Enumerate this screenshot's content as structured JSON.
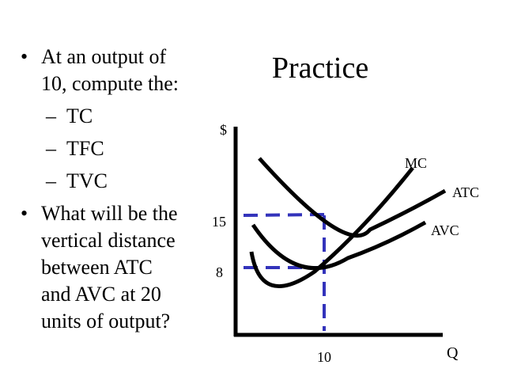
{
  "slide": {
    "title": "Practice",
    "bullets": [
      {
        "text": "At an output of 10, compute the:",
        "line1": "At an output of",
        "line2": "10, compute the:",
        "subitems": [
          "TC",
          "TFC",
          "TVC"
        ]
      },
      {
        "text": "What will be the vertical distance between ATC and AVC at 20 units of output?",
        "lines": [
          "What will be the",
          "vertical distance",
          "between ATC",
          "and AVC at 20",
          "units of output?"
        ]
      }
    ]
  },
  "chart_data": {
    "type": "line",
    "title": "",
    "xlabel": "Q",
    "ylabel": "$",
    "x_ticks": [
      "10"
    ],
    "y_ticks": [
      "15",
      "8"
    ],
    "curves": [
      "MC",
      "ATC",
      "AVC"
    ],
    "reference_points": [
      {
        "x": "10",
        "y": "15",
        "curve": "ATC"
      },
      {
        "x": "10",
        "y": "8",
        "curve": "AVC"
      }
    ],
    "reference_line_color": "#3333bb",
    "curve_color": "#000000"
  }
}
